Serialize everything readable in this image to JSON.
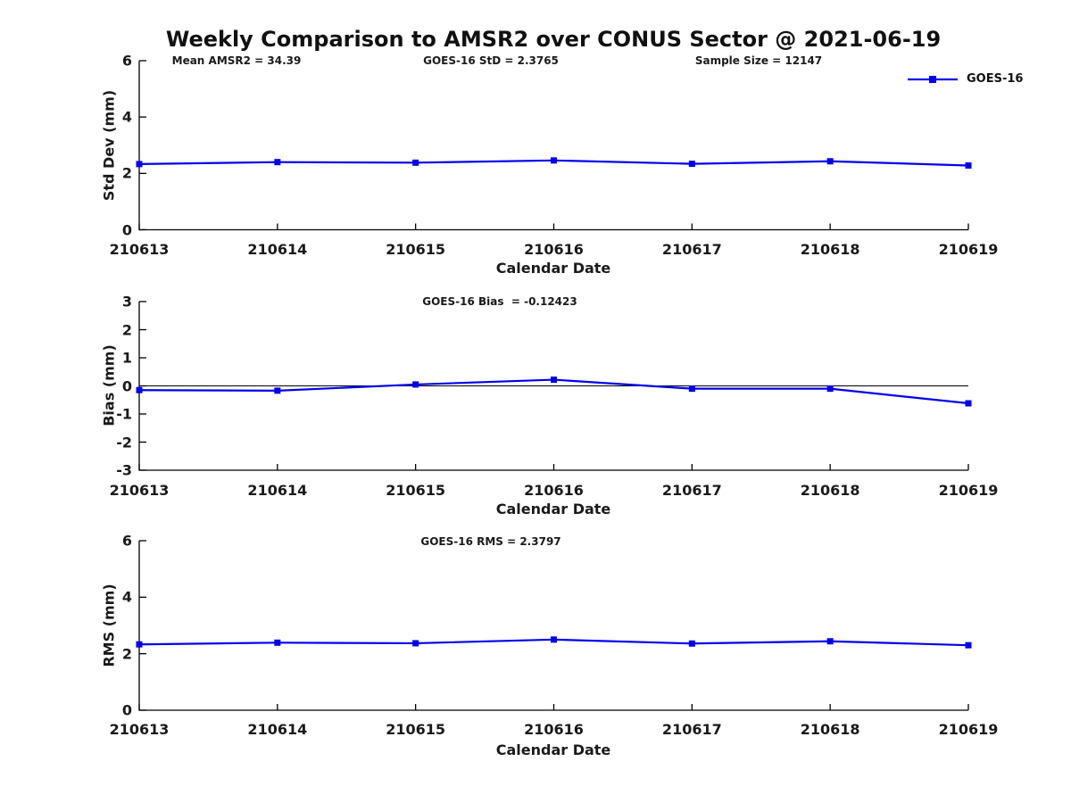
{
  "title": "Weekly Comparison to AMSR2 over CONUS Sector @ 2021-06-19",
  "legend": {
    "label": "GOES-16"
  },
  "line_color": "#0000EE",
  "axis_color": "#000000",
  "text_color": "#1a1a1a",
  "chart_data": [
    {
      "type": "line",
      "name": "std-dev-subplot",
      "ylabel": "Std Dev (mm)",
      "xlabel": "Calendar Date",
      "ylim": [
        0,
        6
      ],
      "yticks": [
        0,
        2,
        4,
        6
      ],
      "categories": [
        "210613",
        "210614",
        "210615",
        "210616",
        "210617",
        "210618",
        "210619"
      ],
      "annotations": [
        "Mean AMSR2 = 34.39",
        "GOES-16 StD = 2.3765",
        "Sample Size = 12147"
      ],
      "legend_entries": [
        "GOES-16"
      ],
      "zero_line": false,
      "grid": false,
      "series": [
        {
          "name": "GOES-16",
          "values": [
            2.33,
            2.4,
            2.38,
            2.46,
            2.34,
            2.43,
            2.28
          ]
        }
      ]
    },
    {
      "type": "line",
      "name": "bias-subplot",
      "ylabel": "Bias (mm)",
      "xlabel": "Calendar Date",
      "ylim": [
        -3,
        3
      ],
      "yticks": [
        3,
        2,
        1,
        0,
        -1,
        -2,
        -3
      ],
      "categories": [
        "210613",
        "210614",
        "210615",
        "210616",
        "210617",
        "210618",
        "210619"
      ],
      "annotations": [
        "GOES-16 Bias  = -0.12423"
      ],
      "legend_entries": [],
      "zero_line": true,
      "grid": false,
      "series": [
        {
          "name": "GOES-16",
          "values": [
            -0.15,
            -0.17,
            0.05,
            0.22,
            -0.1,
            -0.1,
            -0.62
          ]
        }
      ]
    },
    {
      "type": "line",
      "name": "rms-subplot",
      "ylabel": "RMS (mm)",
      "xlabel": "Calendar Date",
      "ylim": [
        0,
        6
      ],
      "yticks": [
        0,
        2,
        4,
        6
      ],
      "categories": [
        "210613",
        "210614",
        "210615",
        "210616",
        "210617",
        "210618",
        "210619"
      ],
      "annotations": [
        "GOES-16 RMS = 2.3797"
      ],
      "legend_entries": [],
      "zero_line": false,
      "grid": false,
      "series": [
        {
          "name": "GOES-16",
          "values": [
            2.33,
            2.39,
            2.37,
            2.5,
            2.36,
            2.44,
            2.3
          ]
        }
      ]
    }
  ]
}
